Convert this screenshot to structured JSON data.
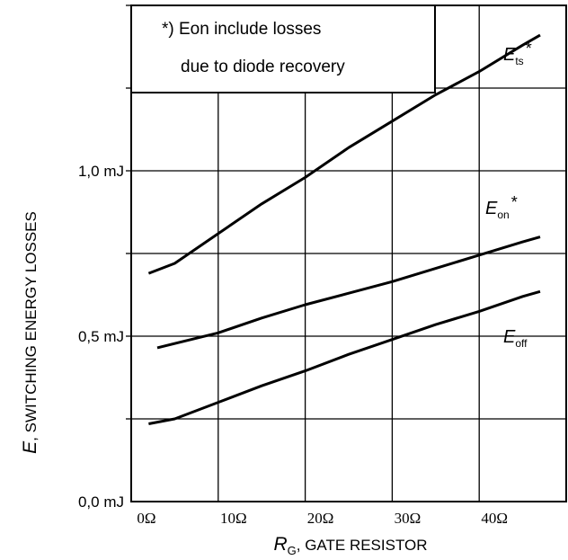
{
  "chart_data": {
    "type": "line",
    "x": [
      2,
      5,
      10,
      15,
      20,
      25,
      30,
      35,
      40,
      45,
      47
    ],
    "series": [
      {
        "name": "Ets",
        "name_sub": "ts",
        "name_star": "*",
        "values": [
          0.69,
          0.72,
          0.81,
          0.9,
          0.98,
          1.07,
          1.15,
          1.23,
          1.3,
          1.38,
          1.41
        ]
      },
      {
        "name": "Eon",
        "name_sub": "on",
        "name_star": "*",
        "values": [
          null,
          0.465,
          0.51,
          0.555,
          0.595,
          0.63,
          0.665,
          0.705,
          0.745,
          0.785,
          0.8
        ]
      },
      {
        "name": "Eoff",
        "name_sub": "off",
        "name_star": "",
        "values": [
          0.235,
          0.25,
          0.3,
          0.35,
          0.395,
          0.445,
          0.49,
          0.535,
          0.575,
          0.62,
          0.635
        ]
      }
    ],
    "xlim": [
      0,
      50
    ],
    "ylim": [
      0,
      1.5
    ],
    "x_ticks": [
      0,
      10,
      20,
      30,
      40
    ],
    "x_tick_labels": [
      "0Ω",
      "10Ω",
      "20Ω",
      "30Ω",
      "40Ω"
    ],
    "y_ticks": [
      0,
      0.5,
      1.0
    ],
    "y_tick_labels": [
      "0,0 mJ",
      "0,5 mJ",
      "1,0 mJ"
    ],
    "y_grid": [
      0.25,
      0.5,
      0.75,
      1.0,
      1.25,
      1.5
    ],
    "x_grid": [
      10,
      20,
      30,
      40,
      50
    ],
    "grid": true,
    "xlabel_symbol": "R",
    "xlabel_sub": "G",
    "xlabel_text": ", GATE RESISTOR",
    "ylabel_symbol": "E",
    "ylabel_text": ", SWITCHING ENERGY LOSSES",
    "annotation": [
      "*) Eon include losses",
      "due to diode recovery"
    ]
  }
}
